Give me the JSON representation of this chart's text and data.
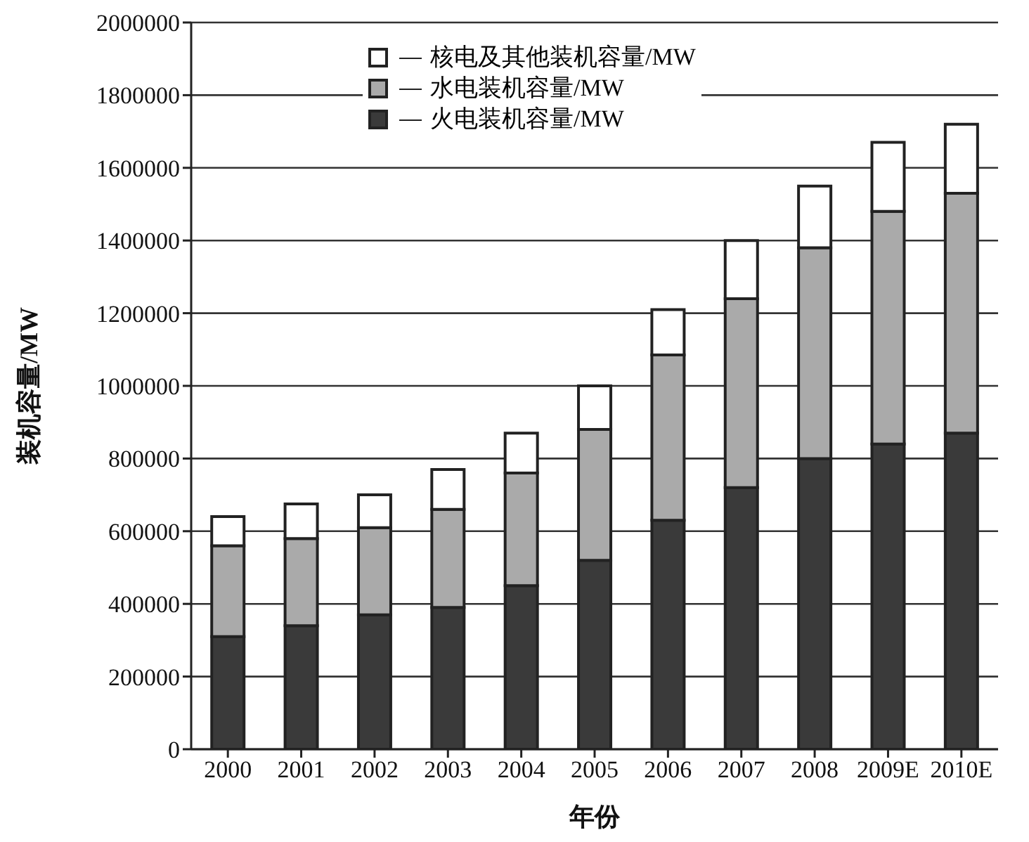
{
  "chart_data": {
    "type": "bar",
    "stacked": true,
    "xlabel": "年份",
    "ylabel": "装机容量/MW",
    "categories": [
      "2000",
      "2001",
      "2002",
      "2003",
      "2004",
      "2005",
      "2006",
      "2007",
      "2008",
      "2009E",
      "2010E"
    ],
    "series": [
      {
        "name": "火电装机容量/MW",
        "color": "#3a3a3a",
        "values": [
          310000,
          340000,
          370000,
          390000,
          450000,
          520000,
          630000,
          720000,
          800000,
          840000,
          870000
        ]
      },
      {
        "name": "水电装机容量/MW",
        "color": "#aaaaaa",
        "values": [
          250000,
          240000,
          240000,
          270000,
          310000,
          360000,
          455000,
          520000,
          580000,
          640000,
          660000
        ]
      },
      {
        "name": "核电及其他装机容量/MW",
        "color": "#ffffff",
        "values": [
          80000,
          95000,
          90000,
          110000,
          110000,
          120000,
          125000,
          160000,
          170000,
          190000,
          190000
        ]
      }
    ],
    "ylim": [
      0,
      2000000
    ],
    "yticks": [
      0,
      200000,
      400000,
      600000,
      800000,
      1000000,
      1200000,
      1400000,
      1600000,
      1800000,
      2000000
    ],
    "grid": "y",
    "legend": "top"
  }
}
